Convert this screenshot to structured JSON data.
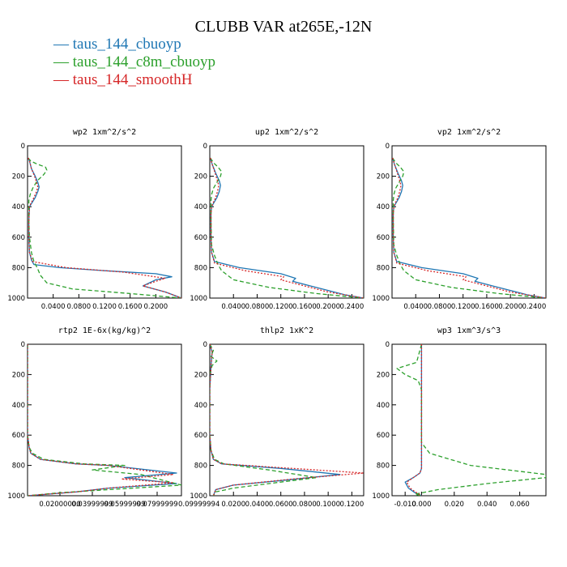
{
  "title": "CLUBB VAR at265E,-12N",
  "legend": [
    {
      "label": "— taus_144_cbuoyp",
      "color": "#1f77b4"
    },
    {
      "label": "— taus_144_c8m_cbuoyp",
      "color": "#2ca02c"
    },
    {
      "label": "— taus_144_smoothH",
      "color": "#d62728"
    }
  ],
  "chart_data": [
    {
      "type": "line",
      "title": "wp2  1xm^2/s^2",
      "xlim": [
        0,
        0.24
      ],
      "ylim": [
        1000,
        0
      ],
      "xticks": [
        0.04,
        0.08,
        0.12,
        0.16,
        0.2
      ],
      "xticklabels": [
        "0.0400",
        "0.0800",
        "0.1200",
        "0.1600",
        "0.2000"
      ],
      "yticks": [
        0,
        200,
        400,
        600,
        800,
        1000
      ],
      "yticklabels": [
        "0",
        "200",
        "400",
        "600",
        "800",
        "1000"
      ],
      "series": [
        {
          "name": "taus_144_cbuoyp",
          "x": [
            0.001,
            0.003,
            0.006,
            0.012,
            0.016,
            0.018,
            0.016,
            0.012,
            0.006,
            0.003,
            0.002,
            0.002,
            0.003,
            0.006,
            0.01,
            0.05,
            0.12,
            0.2,
            0.225,
            0.2,
            0.18,
            0.215,
            0.24
          ],
          "y": [
            80,
            100,
            150,
            200,
            240,
            270,
            300,
            340,
            380,
            400,
            500,
            600,
            700,
            750,
            780,
            800,
            820,
            840,
            860,
            880,
            920,
            960,
            1000
          ]
        },
        {
          "name": "taus_144_c8m_cbuoyp",
          "x": [
            0.001,
            0.005,
            0.015,
            0.028,
            0.03,
            0.025,
            0.015,
            0.008,
            0.004,
            0.002,
            0.002,
            0.002,
            0.003,
            0.006,
            0.01,
            0.015,
            0.02,
            0.03,
            0.07,
            0.16,
            0.24
          ],
          "y": [
            80,
            100,
            120,
            140,
            160,
            190,
            230,
            280,
            320,
            360,
            400,
            500,
            600,
            700,
            760,
            800,
            850,
            900,
            940,
            970,
            1000
          ]
        },
        {
          "name": "taus_144_smoothH",
          "x": [
            0.001,
            0.003,
            0.006,
            0.011,
            0.014,
            0.016,
            0.014,
            0.01,
            0.005,
            0.003,
            0.002,
            0.002,
            0.003,
            0.008,
            0.06,
            0.15,
            0.215,
            0.2,
            0.18,
            0.215,
            0.24
          ],
          "y": [
            80,
            100,
            150,
            200,
            240,
            270,
            300,
            340,
            380,
            400,
            500,
            600,
            700,
            760,
            800,
            830,
            870,
            890,
            920,
            960,
            1000
          ]
        }
      ]
    },
    {
      "type": "line",
      "title": "up2  1xm^2/s^2",
      "xlim": [
        0,
        0.26
      ],
      "ylim": [
        1000,
        0
      ],
      "xticks": [
        0.04,
        0.08,
        0.12,
        0.16,
        0.2,
        0.24
      ],
      "xticklabels": [
        "0.0400",
        "0.0800",
        "0.1200",
        "0.1600",
        "0.2000",
        "0.2400"
      ],
      "yticks": [
        0,
        200,
        400,
        600,
        800,
        1000
      ],
      "yticklabels": [
        "0",
        "200",
        "400",
        "600",
        "800",
        "1000"
      ],
      "series": [
        {
          "name": "taus_144_cbuoyp",
          "x": [
            0.001,
            0.004,
            0.01,
            0.016,
            0.018,
            0.016,
            0.012,
            0.006,
            0.003,
            0.002,
            0.002,
            0.003,
            0.008,
            0.05,
            0.12,
            0.145,
            0.14,
            0.17,
            0.2,
            0.23,
            0.26
          ],
          "y": [
            80,
            120,
            180,
            230,
            260,
            300,
            340,
            380,
            400,
            450,
            600,
            700,
            760,
            800,
            840,
            870,
            890,
            920,
            950,
            980,
            1000
          ]
        },
        {
          "name": "taus_144_c8m_cbuoyp",
          "x": [
            0.001,
            0.006,
            0.014,
            0.02,
            0.018,
            0.012,
            0.006,
            0.003,
            0.002,
            0.002,
            0.003,
            0.008,
            0.014,
            0.02,
            0.04,
            0.1,
            0.18,
            0.26
          ],
          "y": [
            80,
            110,
            140,
            170,
            200,
            240,
            280,
            320,
            360,
            500,
            650,
            720,
            780,
            820,
            880,
            930,
            970,
            1000
          ]
        },
        {
          "name": "taus_144_smoothH",
          "x": [
            0.001,
            0.004,
            0.009,
            0.013,
            0.015,
            0.013,
            0.01,
            0.005,
            0.003,
            0.002,
            0.002,
            0.003,
            0.008,
            0.06,
            0.125,
            0.12,
            0.15,
            0.2,
            0.26
          ],
          "y": [
            80,
            120,
            180,
            230,
            260,
            300,
            340,
            380,
            400,
            450,
            600,
            700,
            770,
            820,
            860,
            880,
            910,
            960,
            1000
          ]
        }
      ]
    },
    {
      "type": "line",
      "title": "vp2  1xm^2/s^2",
      "xlim": [
        0,
        0.26
      ],
      "ylim": [
        1000,
        0
      ],
      "xticks": [
        0.04,
        0.08,
        0.12,
        0.16,
        0.2,
        0.24
      ],
      "xticklabels": [
        "0.0400",
        "0.0800",
        "0.1200",
        "0.1600",
        "0.2000",
        "0.2400"
      ],
      "yticks": [
        0,
        200,
        400,
        600,
        800,
        1000
      ],
      "yticklabels": [
        "0",
        "200",
        "400",
        "600",
        "800",
        "1000"
      ],
      "series": [
        {
          "name": "taus_144_cbuoyp",
          "x": [
            0.001,
            0.004,
            0.01,
            0.016,
            0.018,
            0.016,
            0.012,
            0.006,
            0.003,
            0.002,
            0.002,
            0.003,
            0.008,
            0.05,
            0.12,
            0.145,
            0.14,
            0.17,
            0.2,
            0.23,
            0.26
          ],
          "y": [
            80,
            120,
            180,
            230,
            260,
            300,
            340,
            380,
            400,
            450,
            600,
            700,
            760,
            800,
            840,
            870,
            890,
            920,
            950,
            980,
            1000
          ]
        },
        {
          "name": "taus_144_c8m_cbuoyp",
          "x": [
            0.001,
            0.006,
            0.014,
            0.02,
            0.018,
            0.012,
            0.006,
            0.003,
            0.002,
            0.002,
            0.003,
            0.008,
            0.014,
            0.02,
            0.04,
            0.1,
            0.18,
            0.26
          ],
          "y": [
            80,
            110,
            140,
            170,
            200,
            240,
            280,
            320,
            360,
            500,
            650,
            720,
            780,
            820,
            880,
            930,
            970,
            1000
          ]
        },
        {
          "name": "taus_144_smoothH",
          "x": [
            0.001,
            0.004,
            0.009,
            0.013,
            0.015,
            0.013,
            0.01,
            0.005,
            0.003,
            0.002,
            0.002,
            0.003,
            0.008,
            0.06,
            0.125,
            0.12,
            0.15,
            0.2,
            0.26
          ],
          "y": [
            80,
            120,
            180,
            230,
            260,
            300,
            340,
            380,
            400,
            450,
            600,
            700,
            770,
            820,
            860,
            880,
            910,
            960,
            1000
          ]
        }
      ]
    },
    {
      "type": "line",
      "title": "rtp2  1E-6x(kg/kg)^2",
      "xlim": [
        0,
        0.095
      ],
      "ylim": [
        1000,
        0
      ],
      "xticks": [
        0.02,
        0.04,
        0.06,
        0.08
      ],
      "xticklabels": [
        "0.02000000",
        "0.03999999",
        "0.05999999",
        "0.07999999"
      ],
      "xticks_extra_label": "0.09999994",
      "yticks": [
        0,
        200,
        400,
        600,
        800,
        1000
      ],
      "yticklabels": [
        "0",
        "200",
        "400",
        "600",
        "800",
        "1000"
      ],
      "series": [
        {
          "name": "taus_144_cbuoyp",
          "x": [
            0.0,
            0.0,
            0.001,
            0.002,
            0.008,
            0.03,
            0.05,
            0.092,
            0.06,
            0.092,
            0.05,
            0.03,
            0.0
          ],
          "y": [
            0,
            600,
            680,
            720,
            760,
            790,
            800,
            850,
            880,
            920,
            950,
            975,
            1000
          ]
        },
        {
          "name": "taus_144_c8m_cbuoyp",
          "x": [
            0.0,
            0.0,
            0.001,
            0.003,
            0.01,
            0.035,
            0.06,
            0.04,
            0.07,
            0.095,
            0.05,
            0.02,
            0.0
          ],
          "y": [
            0,
            600,
            680,
            720,
            760,
            790,
            800,
            830,
            860,
            930,
            960,
            980,
            1000
          ]
        },
        {
          "name": "taus_144_smoothH",
          "x": [
            0.0,
            0.0,
            0.001,
            0.002,
            0.008,
            0.03,
            0.05,
            0.09,
            0.058,
            0.09,
            0.05,
            0.03,
            0.0
          ],
          "y": [
            0,
            600,
            680,
            720,
            760,
            790,
            800,
            860,
            890,
            915,
            950,
            975,
            1000
          ]
        }
      ]
    },
    {
      "type": "line",
      "title": "thlp2  1xK^2",
      "xlim": [
        0,
        0.13
      ],
      "ylim": [
        1000,
        0
      ],
      "xticks": [
        0.02,
        0.04,
        0.06,
        0.08,
        0.1,
        0.12
      ],
      "xticklabels": [
        "0.0200",
        "0.0400",
        "0.0600",
        "0.0800",
        "0.1000",
        "0.1200"
      ],
      "yticks": [
        0,
        200,
        400,
        600,
        800,
        1000
      ],
      "yticklabels": [
        "0",
        "200",
        "400",
        "600",
        "800",
        "1000"
      ],
      "series": [
        {
          "name": "taus_144_cbuoyp",
          "x": [
            0.0,
            0.002,
            0.001,
            0.0,
            0.0,
            0.001,
            0.003,
            0.01,
            0.06,
            0.11,
            0.06,
            0.02,
            0.005,
            0.003
          ],
          "y": [
            0,
            50,
            150,
            300,
            600,
            700,
            760,
            790,
            820,
            860,
            900,
            930,
            960,
            1000
          ]
        },
        {
          "name": "taus_144_c8m_cbuoyp",
          "x": [
            0.0,
            0.003,
            0.001,
            0.006,
            0.002,
            0.0,
            0.0,
            0.001,
            0.004,
            0.012,
            0.05,
            0.09,
            0.05,
            0.02,
            0.005,
            0.003
          ],
          "y": [
            0,
            40,
            80,
            110,
            140,
            200,
            600,
            700,
            760,
            790,
            830,
            880,
            920,
            950,
            975,
            1000
          ]
        },
        {
          "name": "taus_144_smoothH",
          "x": [
            0.0,
            0.002,
            0.001,
            0.0,
            0.0,
            0.001,
            0.003,
            0.01,
            0.07,
            0.13,
            0.07,
            0.02,
            0.005,
            0.003
          ],
          "y": [
            0,
            50,
            150,
            300,
            600,
            700,
            760,
            790,
            820,
            850,
            890,
            930,
            960,
            1000
          ]
        }
      ]
    },
    {
      "type": "line",
      "title": "wp3  1xm^3/s^3",
      "xlim": [
        -0.018,
        0.076
      ],
      "ylim": [
        1000,
        0
      ],
      "xticks": [
        -0.01,
        0.0,
        0.02,
        0.04,
        0.06
      ],
      "xticklabels": [
        "-0.010",
        "0.000",
        "0.020",
        "0.040",
        "0.060"
      ],
      "yticks": [
        0,
        200,
        400,
        600,
        800,
        1000
      ],
      "yticklabels": [
        "0",
        "200",
        "400",
        "600",
        "800",
        "1000"
      ],
      "series": [
        {
          "name": "taus_144_cbuoyp",
          "x": [
            0.0,
            0.0,
            0.0,
            -0.001,
            -0.005,
            -0.01,
            -0.008,
            -0.004,
            0.0
          ],
          "y": [
            0,
            700,
            820,
            850,
            880,
            910,
            950,
            980,
            1000
          ]
        },
        {
          "name": "taus_144_c8m_cbuoyp",
          "x": [
            0.0,
            -0.003,
            -0.015,
            -0.01,
            -0.002,
            0.0,
            0.0,
            0.005,
            0.03,
            0.076,
            0.076,
            0.04,
            0.01,
            -0.004,
            0.0
          ],
          "y": [
            0,
            120,
            160,
            200,
            240,
            300,
            650,
            720,
            800,
            860,
            880,
            920,
            960,
            990,
            1000
          ]
        },
        {
          "name": "taus_144_smoothH",
          "x": [
            0.0,
            0.0,
            0.0,
            -0.001,
            -0.005,
            -0.009,
            -0.007,
            -0.003,
            0.0
          ],
          "y": [
            0,
            700,
            820,
            850,
            880,
            910,
            950,
            980,
            1000
          ]
        }
      ]
    }
  ]
}
